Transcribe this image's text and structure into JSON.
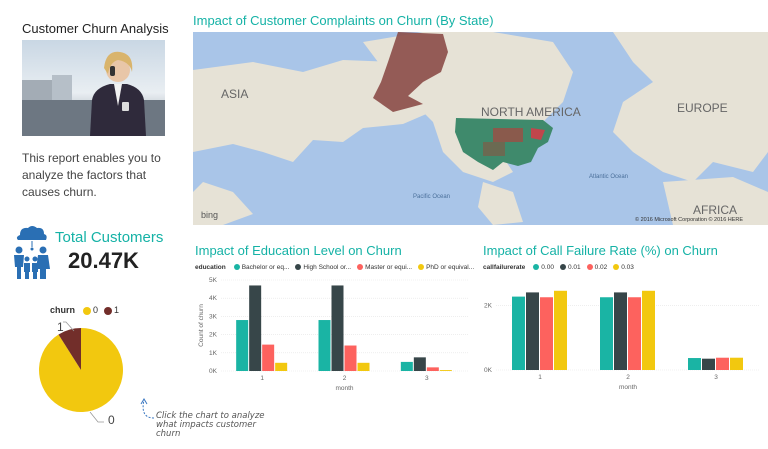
{
  "report": {
    "title": "Customer Churn Analysis",
    "description": "This report enables you to analyze the factors that causes churn.",
    "total_label": "Total Customers",
    "total_value": "20.47K",
    "hint": "Click the chart to analyze what impacts customer churn",
    "icon": "family-icon"
  },
  "map": {
    "title": "Impact of Customer Complaints on Churn (By State)",
    "labels": {
      "asia": "ASIA",
      "north_america": "NORTH AMERICA",
      "europe": "EUROPE",
      "africa": "AFRICA",
      "pacific": "Pacific Ocean",
      "atlantic": "Atlantic Ocean"
    },
    "logo": "bing",
    "copyright": "© 2016 Microsoft Corporation   © 2016 HERE"
  },
  "colors": {
    "accent": "#15b2a6",
    "teal": "#1ab4a4",
    "dark": "#374649",
    "red": "#fd625e",
    "yellow": "#f2c80f",
    "maroon": "#722e2a",
    "ocean": "#a9c5e8",
    "land": "#e6e2d6"
  },
  "pie": {
    "legend_title": "churn",
    "labels": {
      "zero": "0",
      "one": "1"
    }
  },
  "education": {
    "title": "Impact of Education Level on Churn",
    "legend_title": "education",
    "xlabel": "month",
    "ylabel": "Count of churn"
  },
  "failure": {
    "title": "Impact of Call Failure Rate (%) on Churn",
    "legend_title": "callfailurerate",
    "xlabel": "month"
  },
  "chart_data": [
    {
      "type": "pie",
      "legend_title": "churn",
      "labels": [
        "0",
        "1"
      ],
      "values": [
        91,
        9
      ],
      "colors": [
        "#f2c80f",
        "#722e2a"
      ]
    },
    {
      "type": "bar",
      "title": "Impact of Education Level on Churn",
      "xlabel": "month",
      "ylabel": "Count of churn",
      "categories": [
        "1",
        "2",
        "3"
      ],
      "yticks": [
        "0K",
        "1K",
        "2K",
        "3K",
        "4K",
        "5K"
      ],
      "ylim": [
        0,
        5000
      ],
      "series": [
        {
          "name": "Bachelor or eq...",
          "color": "#1ab4a4",
          "values": [
            2800,
            2800,
            500
          ]
        },
        {
          "name": "High School or...",
          "color": "#374649",
          "values": [
            4700,
            4700,
            750
          ]
        },
        {
          "name": "Master or equi...",
          "color": "#fd625e",
          "values": [
            1450,
            1400,
            200
          ]
        },
        {
          "name": "PhD or equival...",
          "color": "#f2c80f",
          "values": [
            450,
            450,
            50
          ]
        }
      ],
      "grid": true,
      "legend": "top"
    },
    {
      "type": "bar",
      "title": "Impact of Call Failure Rate (%) on Churn",
      "xlabel": "month",
      "categories": [
        "1",
        "2",
        "3"
      ],
      "yticks": [
        "0K",
        "2K"
      ],
      "ylim": [
        0,
        3000
      ],
      "series": [
        {
          "name": "0.00",
          "color": "#1ab4a4",
          "values": [
            2270,
            2250,
            370
          ]
        },
        {
          "name": "0.01",
          "color": "#374649",
          "values": [
            2400,
            2400,
            350
          ]
        },
        {
          "name": "0.02",
          "color": "#fd625e",
          "values": [
            2250,
            2250,
            380
          ]
        },
        {
          "name": "0.03",
          "color": "#f2c80f",
          "values": [
            2450,
            2450,
            380
          ]
        }
      ],
      "grid": true,
      "legend": "top"
    }
  ]
}
